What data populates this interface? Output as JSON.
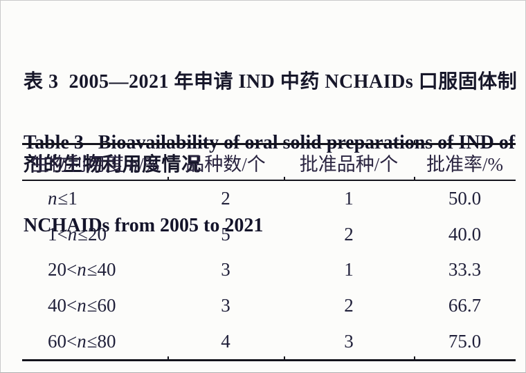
{
  "caption": {
    "zh_line1": "表 3  2005—2021 年申请 IND 中药 NCHAIDs 口服固体制",
    "zh_line2": "剂的生物利用度情况",
    "en_line1": "Table 3   Bioavailability of oral solid preparations of IND of",
    "en_line2": "NCHAIDs from 2005 to 2021"
  },
  "table": {
    "header": {
      "col1_pre": "生物利用度 ",
      "col1_var": "n",
      "col1_post": "/%",
      "col2": "品种数/个",
      "col3": "批准品种/个",
      "col4": "批准率/%"
    },
    "rows": [
      {
        "pre": "",
        "var": "n",
        "post": "≤1",
        "count": "2",
        "approved": "1",
        "rate": "50.0"
      },
      {
        "pre": "1<",
        "var": "n",
        "post": "≤20",
        "count": "5",
        "approved": "2",
        "rate": "40.0"
      },
      {
        "pre": "20<",
        "var": "n",
        "post": "≤40",
        "count": "3",
        "approved": "1",
        "rate": "33.3"
      },
      {
        "pre": "40<",
        "var": "n",
        "post": "≤60",
        "count": "3",
        "approved": "2",
        "rate": "66.7"
      },
      {
        "pre": "60<",
        "var": "n",
        "post": "≤80",
        "count": "4",
        "approved": "3",
        "rate": "75.0"
      }
    ]
  },
  "colors": {
    "text": "#1e1e30",
    "rule": "#14141c",
    "background": "#fcfcfa",
    "frame_border": "#c9c9c9"
  }
}
